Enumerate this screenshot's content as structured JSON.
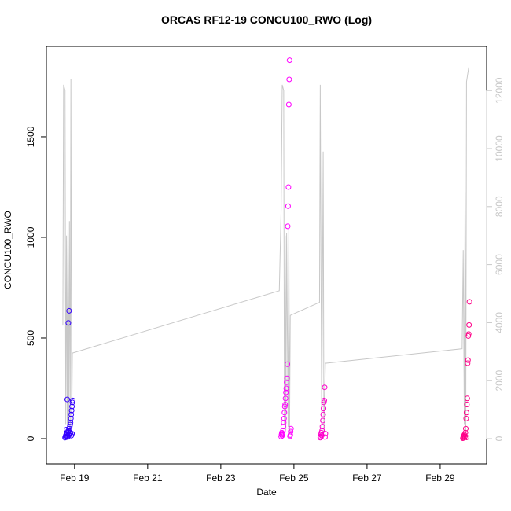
{
  "chart_data": {
    "type": "scatter",
    "title": "ORCAS RF12-19 CONCU100_RWO (Log)",
    "x_label": "Date",
    "y_label": "CONCU100_RWO",
    "xlim": [
      18.23,
      30.27
    ],
    "xticks": [
      {
        "value": 19,
        "label": "Feb 19"
      },
      {
        "value": 21,
        "label": "Feb 21"
      },
      {
        "value": 23,
        "label": "Feb 23"
      },
      {
        "value": 25,
        "label": "Feb 25"
      },
      {
        "value": 27,
        "label": "Feb 27"
      },
      {
        "value": 29,
        "label": "Feb 29"
      }
    ],
    "ylim": [
      -125,
      1949
    ],
    "yticks": [
      0,
      500,
      1000,
      1500
    ],
    "y2lim": [
      -867,
      13523
    ],
    "y2ticks": [
      0,
      2000,
      4000,
      6000,
      8000,
      10000,
      12000
    ],
    "y2_color": "#c8c8c8",
    "series": [
      {
        "type": "line",
        "axis": "y2",
        "color": "#c8c8c8",
        "x": [
          18.68,
          18.7,
          18.74,
          18.76,
          18.78,
          18.8,
          18.82,
          18.84,
          18.86,
          18.88,
          18.9,
          18.92,
          18.94,
          24.6,
          24.65,
          24.68,
          24.72,
          24.74,
          24.76,
          24.78,
          24.8,
          24.84,
          24.86,
          24.88,
          24.9,
          25.7,
          25.72,
          25.74,
          25.76,
          25.8,
          25.82,
          25.86,
          29.6,
          29.63,
          29.66,
          29.68,
          29.7,
          29.72,
          29.78
        ],
        "values": [
          3900,
          12200,
          12000,
          500,
          7000,
          500,
          7200,
          500,
          7500,
          200,
          12400,
          200,
          2950,
          5100,
          7900,
          12200,
          12000,
          500,
          7000,
          300,
          7100,
          400,
          7300,
          200,
          4250,
          4700,
          12200,
          6000,
          300,
          9900,
          200,
          2600,
          3100,
          6500,
          500,
          8500,
          300,
          12300,
          12800
        ]
      },
      {
        "type": "points",
        "color": "#3300ff",
        "x": [
          18.74,
          18.75,
          18.76,
          18.77,
          18.78,
          18.79,
          18.8,
          18.81,
          18.82,
          18.83,
          18.84,
          18.85,
          18.86,
          18.87,
          18.88,
          18.89,
          18.9,
          18.91,
          18.92,
          18.93,
          18.94,
          18.95,
          18.8,
          18.83,
          18.85,
          18.87,
          18.89,
          18.91,
          18.78,
          18.93
        ],
        "values": [
          5,
          10,
          15,
          20,
          25,
          30,
          12,
          8,
          35,
          40,
          22,
          18,
          50,
          60,
          70,
          80,
          100,
          120,
          140,
          160,
          180,
          190,
          195,
          575,
          635,
          30,
          28,
          15,
          45,
          25
        ]
      },
      {
        "type": "points",
        "color": "#ff00ff",
        "x": [
          24.65,
          24.66,
          24.67,
          24.68,
          24.69,
          24.7,
          24.71,
          24.72,
          24.73,
          24.74,
          24.75,
          24.76,
          24.77,
          24.78,
          24.79,
          24.8,
          24.81,
          24.82,
          24.83,
          24.84,
          24.85,
          24.86,
          24.87,
          24.88,
          24.89,
          24.9,
          24.91,
          24.92
        ],
        "values": [
          10,
          20,
          30,
          15,
          25,
          40,
          60,
          80,
          100,
          130,
          160,
          170,
          200,
          230,
          250,
          280,
          300,
          370,
          1055,
          1155,
          1250,
          1660,
          1785,
          1880,
          12,
          18,
          35,
          50
        ]
      },
      {
        "type": "points",
        "color": "#ff00cc",
        "x": [
          25.72,
          25.73,
          25.74,
          25.75,
          25.76,
          25.77,
          25.78,
          25.79,
          25.8,
          25.81,
          25.82,
          25.83,
          25.84,
          25.85,
          25.86
        ],
        "values": [
          5,
          10,
          20,
          30,
          15,
          40,
          60,
          90,
          120,
          150,
          180,
          190,
          255,
          8,
          25
        ]
      },
      {
        "type": "points",
        "color": "#ff0088",
        "x": [
          29.62,
          29.63,
          29.64,
          29.65,
          29.66,
          29.67,
          29.68,
          29.69,
          29.7,
          29.71,
          29.72,
          29.73,
          29.74,
          29.75,
          29.76,
          29.77,
          29.78,
          29.79,
          29.8,
          29.72
        ],
        "values": [
          2,
          5,
          10,
          15,
          20,
          8,
          12,
          30,
          50,
          100,
          130,
          170,
          200,
          375,
          390,
          510,
          520,
          565,
          680,
          6
        ]
      }
    ]
  }
}
